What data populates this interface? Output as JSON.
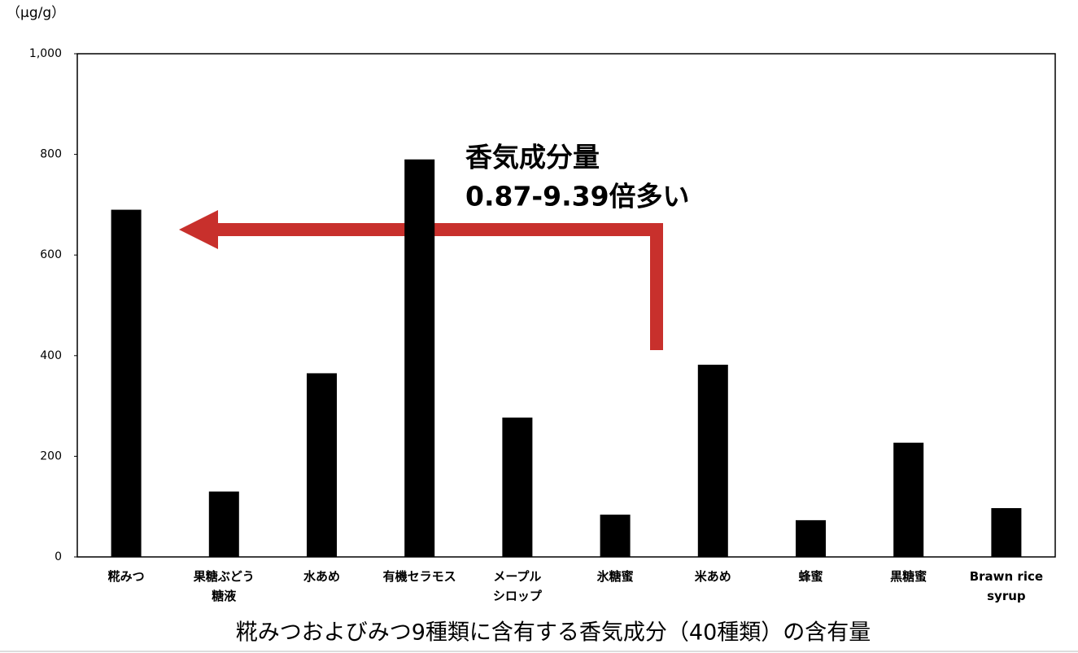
{
  "chart_data": {
    "type": "bar",
    "title": "糀みつおよびみつ9種類に含有する香気成分（40種類）の含有量",
    "y_axis_label": "（μg/g）",
    "annotation": [
      "香気成分量",
      "0.87-9.39倍多い"
    ],
    "categories": [
      "糀みつ",
      "果糖ぶどう\n糖液",
      "水あめ",
      "有機セラモス",
      "メープル\nシロップ",
      "氷糖蜜",
      "米あめ",
      "蜂蜜",
      "黒糖蜜",
      "Brawn rice\nsyrup"
    ],
    "values": [
      690,
      130,
      365,
      790,
      277,
      84,
      382,
      73,
      227,
      97
    ],
    "color": "#000000",
    "annotation_color": "#c8302c",
    "ylim": [
      0,
      1000
    ],
    "yticks": [
      0,
      200,
      400,
      600,
      800,
      {
        "value": 1000,
        "label": "1,000"
      }
    ],
    "grid": false
  }
}
